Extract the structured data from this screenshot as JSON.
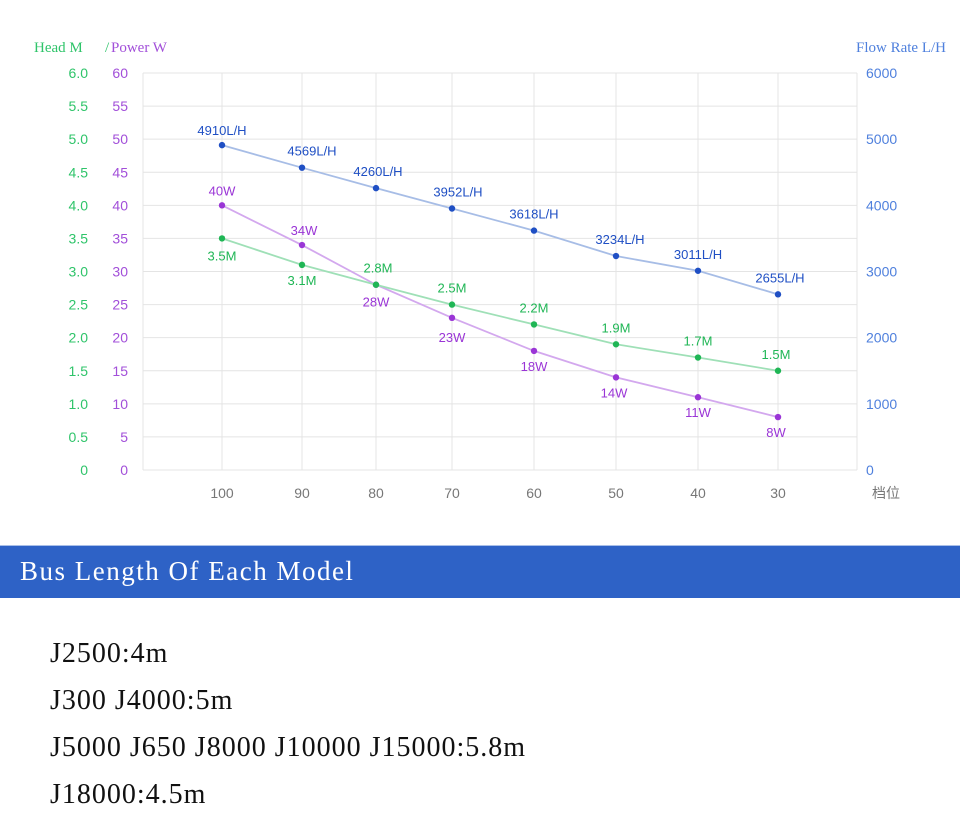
{
  "chart_data": {
    "type": "line",
    "x_categories": [
      "100",
      "90",
      "80",
      "70",
      "60",
      "50",
      "40",
      "30"
    ],
    "x_unit_label": "档位",
    "left_axis_title_head": "Head M",
    "left_axis_title_power": "Power W",
    "left_axis_separator": "/",
    "right_axis_title": "Flow Rate L/H",
    "head_ticks": [
      "6.0",
      "5.5",
      "5.0",
      "4.5",
      "4.0",
      "3.5",
      "3.0",
      "2.5",
      "2.0",
      "1.5",
      "1.0",
      "0.5",
      "0"
    ],
    "power_ticks": [
      "60",
      "55",
      "50",
      "45",
      "40",
      "35",
      "30",
      "25",
      "20",
      "15",
      "10",
      "5",
      "0"
    ],
    "flow_ticks": [
      "6000",
      "5000",
      "4000",
      "3000",
      "2000",
      "1000",
      "0"
    ],
    "head_range": [
      0,
      6
    ],
    "power_range": [
      0,
      60
    ],
    "flow_range": [
      0,
      6000
    ],
    "grid": true,
    "series": [
      {
        "key": "flow",
        "axis": "flow",
        "color": "#1f4fc4",
        "line_color": "#a7bde6",
        "values": [
          4910,
          4569,
          4260,
          3952,
          3618,
          3234,
          3011,
          2655
        ],
        "labels": [
          "4910L/H",
          "4569L/H",
          "4260L/H",
          "3952L/H",
          "3618L/H",
          "3234L/H",
          "3011L/H",
          "2655L/H"
        ]
      },
      {
        "key": "power",
        "axis": "power",
        "color": "#9a35d6",
        "line_color": "#d3a8ee",
        "values": [
          40,
          34,
          28,
          23,
          18,
          14,
          11,
          8
        ],
        "labels": [
          "40W",
          "34W",
          "28W",
          "23W",
          "18W",
          "14W",
          "11W",
          "8W"
        ]
      },
      {
        "key": "head",
        "axis": "head",
        "color": "#1fb655",
        "line_color": "#9fe0b7",
        "values": [
          3.5,
          3.1,
          2.8,
          2.5,
          2.2,
          1.9,
          1.7,
          1.5
        ],
        "labels": [
          "3.5M",
          "3.1M",
          "2.8M",
          "2.5M",
          "2.2M",
          "1.9M",
          "1.7M",
          "1.5M"
        ]
      }
    ],
    "colors": {
      "head_axis": "#2fc46a",
      "power_axis": "#a24fd9",
      "flow_axis": "#4f80dd",
      "grid": "#e4e4e4",
      "x_tick": "#777777"
    }
  },
  "section": {
    "title": "Bus Length Of Each Model",
    "models": [
      "J2500:4m",
      "J300 J4000:5m",
      "J5000 J650 J8000 J10000 J15000:5.8m",
      "J18000:4.5m"
    ]
  }
}
